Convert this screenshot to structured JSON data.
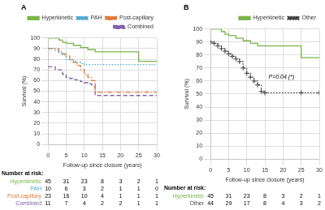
{
  "chart_data": [
    {
      "type": "step",
      "title": "A",
      "x_label": "Follow-up since closure (years)",
      "y_label": "Survival (%)",
      "xlim": [
        0,
        30
      ],
      "ylim": [
        0,
        100
      ],
      "xticks": [
        0,
        5,
        10,
        15,
        20,
        25,
        30
      ],
      "yticks": [
        0,
        10,
        20,
        30,
        40,
        50,
        60,
        70,
        80,
        90,
        100
      ],
      "grid": true,
      "legend": "upper right",
      "series": [
        {
          "name": "Hyperkinetic",
          "color": "#7ab648",
          "line_style": "solid",
          "x": [
            0,
            2,
            3,
            4,
            5,
            7,
            9,
            11,
            13,
            25,
            30
          ],
          "values": [
            100,
            100,
            98,
            96,
            95,
            93,
            91,
            89,
            87,
            78,
            78
          ]
        },
        {
          "name": "PAH",
          "color": "#4fa8d0",
          "line_style": "dotted",
          "x": [
            0,
            1,
            2,
            3,
            4,
            5,
            6,
            7,
            8,
            9,
            10,
            25,
            30
          ],
          "values": [
            90,
            90,
            88,
            86,
            84,
            80,
            79,
            78,
            77,
            76,
            75,
            75,
            75
          ]
        },
        {
          "name": "Post-capillary",
          "color": "#e07b39",
          "line_style": "dashdot",
          "x": [
            0,
            2,
            3,
            4,
            5,
            6,
            7,
            8,
            9,
            10,
            11,
            12,
            13,
            25,
            30
          ],
          "values": [
            90,
            90,
            87,
            85,
            83,
            80,
            77,
            74,
            70,
            66,
            63,
            60,
            49,
            49,
            49
          ]
        },
        {
          "name": "Combined",
          "color": "#8060a8",
          "line_style": "dashed",
          "x": [
            0,
            1,
            2,
            4,
            5,
            6,
            7,
            8,
            9,
            10,
            11,
            12,
            13,
            25,
            30
          ],
          "values": [
            73,
            73,
            70,
            66,
            63,
            62,
            61,
            60,
            59,
            58,
            57,
            56,
            46,
            46,
            46
          ]
        }
      ],
      "at_risk": {
        "header": "Number at risk:",
        "x": [
          0,
          5,
          10,
          15,
          20,
          25,
          30
        ],
        "rows": [
          {
            "name": "Hyperkinetic",
            "color": "#7ab648",
            "values": [
              45,
              31,
              23,
              8,
              3,
              2,
              1
            ]
          },
          {
            "name": "PAH",
            "color": "#4fa8d0",
            "values": [
              10,
              6,
              3,
              2,
              1,
              1,
              0
            ]
          },
          {
            "name": "Post-capillary",
            "color": "#e07b39",
            "values": [
              23,
              16,
              10,
              4,
              1,
              1,
              1
            ]
          },
          {
            "name": "Combined",
            "color": "#8060a8",
            "values": [
              11,
              7,
              4,
              2,
              2,
              1,
              1
            ]
          }
        ]
      }
    },
    {
      "type": "step",
      "title": "B",
      "x_label": "Follow-up since closure (years)",
      "y_label": "Survival (%)",
      "xlim": [
        0,
        30
      ],
      "ylim": [
        0,
        100
      ],
      "xticks": [
        0,
        5,
        10,
        15,
        20,
        25,
        30
      ],
      "yticks": [
        0,
        10,
        20,
        30,
        40,
        50,
        60,
        70,
        80,
        90,
        100
      ],
      "grid": true,
      "legend": "upper right",
      "series": [
        {
          "name": "Hyperkinetic",
          "color": "#7ab648",
          "line_style": "solid",
          "x": [
            0,
            2,
            3,
            4,
            5,
            7,
            9,
            11,
            13,
            25,
            30
          ],
          "values": [
            100,
            100,
            98,
            96,
            95,
            93,
            91,
            89,
            87,
            78,
            78
          ]
        },
        {
          "name": "Other",
          "color": "#444444",
          "line_style": "dotted",
          "marker": "plus",
          "x": [
            0,
            1,
            2,
            3,
            4,
            5,
            6,
            7,
            8,
            9,
            10,
            11,
            12,
            13,
            14,
            15,
            25,
            30
          ],
          "values": [
            90,
            89,
            87,
            85,
            83,
            81,
            79,
            77,
            75,
            70,
            66,
            63,
            60,
            57,
            52,
            51,
            51,
            51
          ]
        }
      ],
      "annotations": [
        {
          "text": "P=0.04 (*)",
          "x": 16,
          "y": 63
        }
      ],
      "at_risk": {
        "header": "Number at risk:",
        "x": [
          0,
          5,
          10,
          15,
          20,
          25,
          30
        ],
        "rows": [
          {
            "name": "Hyperkinetic",
            "color": "#7ab648",
            "values": [
              45,
              31,
              23,
              8,
              3,
              2,
              1
            ]
          },
          {
            "name": "Other",
            "color": "#444444",
            "values": [
              44,
              29,
              17,
              8,
              4,
              3,
              2
            ]
          }
        ]
      }
    }
  ]
}
